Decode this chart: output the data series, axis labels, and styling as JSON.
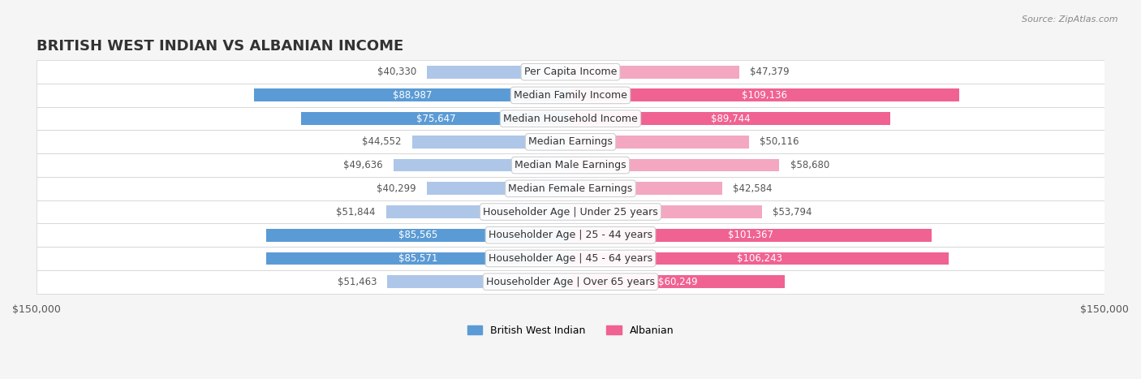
{
  "title": "BRITISH WEST INDIAN VS ALBANIAN INCOME",
  "source": "Source: ZipAtlas.com",
  "categories": [
    "Per Capita Income",
    "Median Family Income",
    "Median Household Income",
    "Median Earnings",
    "Median Male Earnings",
    "Median Female Earnings",
    "Householder Age | Under 25 years",
    "Householder Age | 25 - 44 years",
    "Householder Age | 45 - 64 years",
    "Householder Age | Over 65 years"
  ],
  "british_values": [
    40330,
    88987,
    75647,
    44552,
    49636,
    40299,
    51844,
    85565,
    85571,
    51463
  ],
  "albanian_values": [
    47379,
    109136,
    89744,
    50116,
    58680,
    42584,
    53794,
    101367,
    106243,
    60249
  ],
  "british_color_strong": "#5b9bd5",
  "british_color_light": "#aec6e8",
  "albanian_color_strong": "#f06292",
  "albanian_color_light": "#f4a7c0",
  "max_value": 150000,
  "bar_height": 0.55,
  "background_color": "#f5f5f5",
  "row_bg_color": "#ffffff",
  "row_alt_bg": "#f0f0f0",
  "label_fontsize": 9,
  "title_fontsize": 13,
  "value_fontsize": 8.5
}
